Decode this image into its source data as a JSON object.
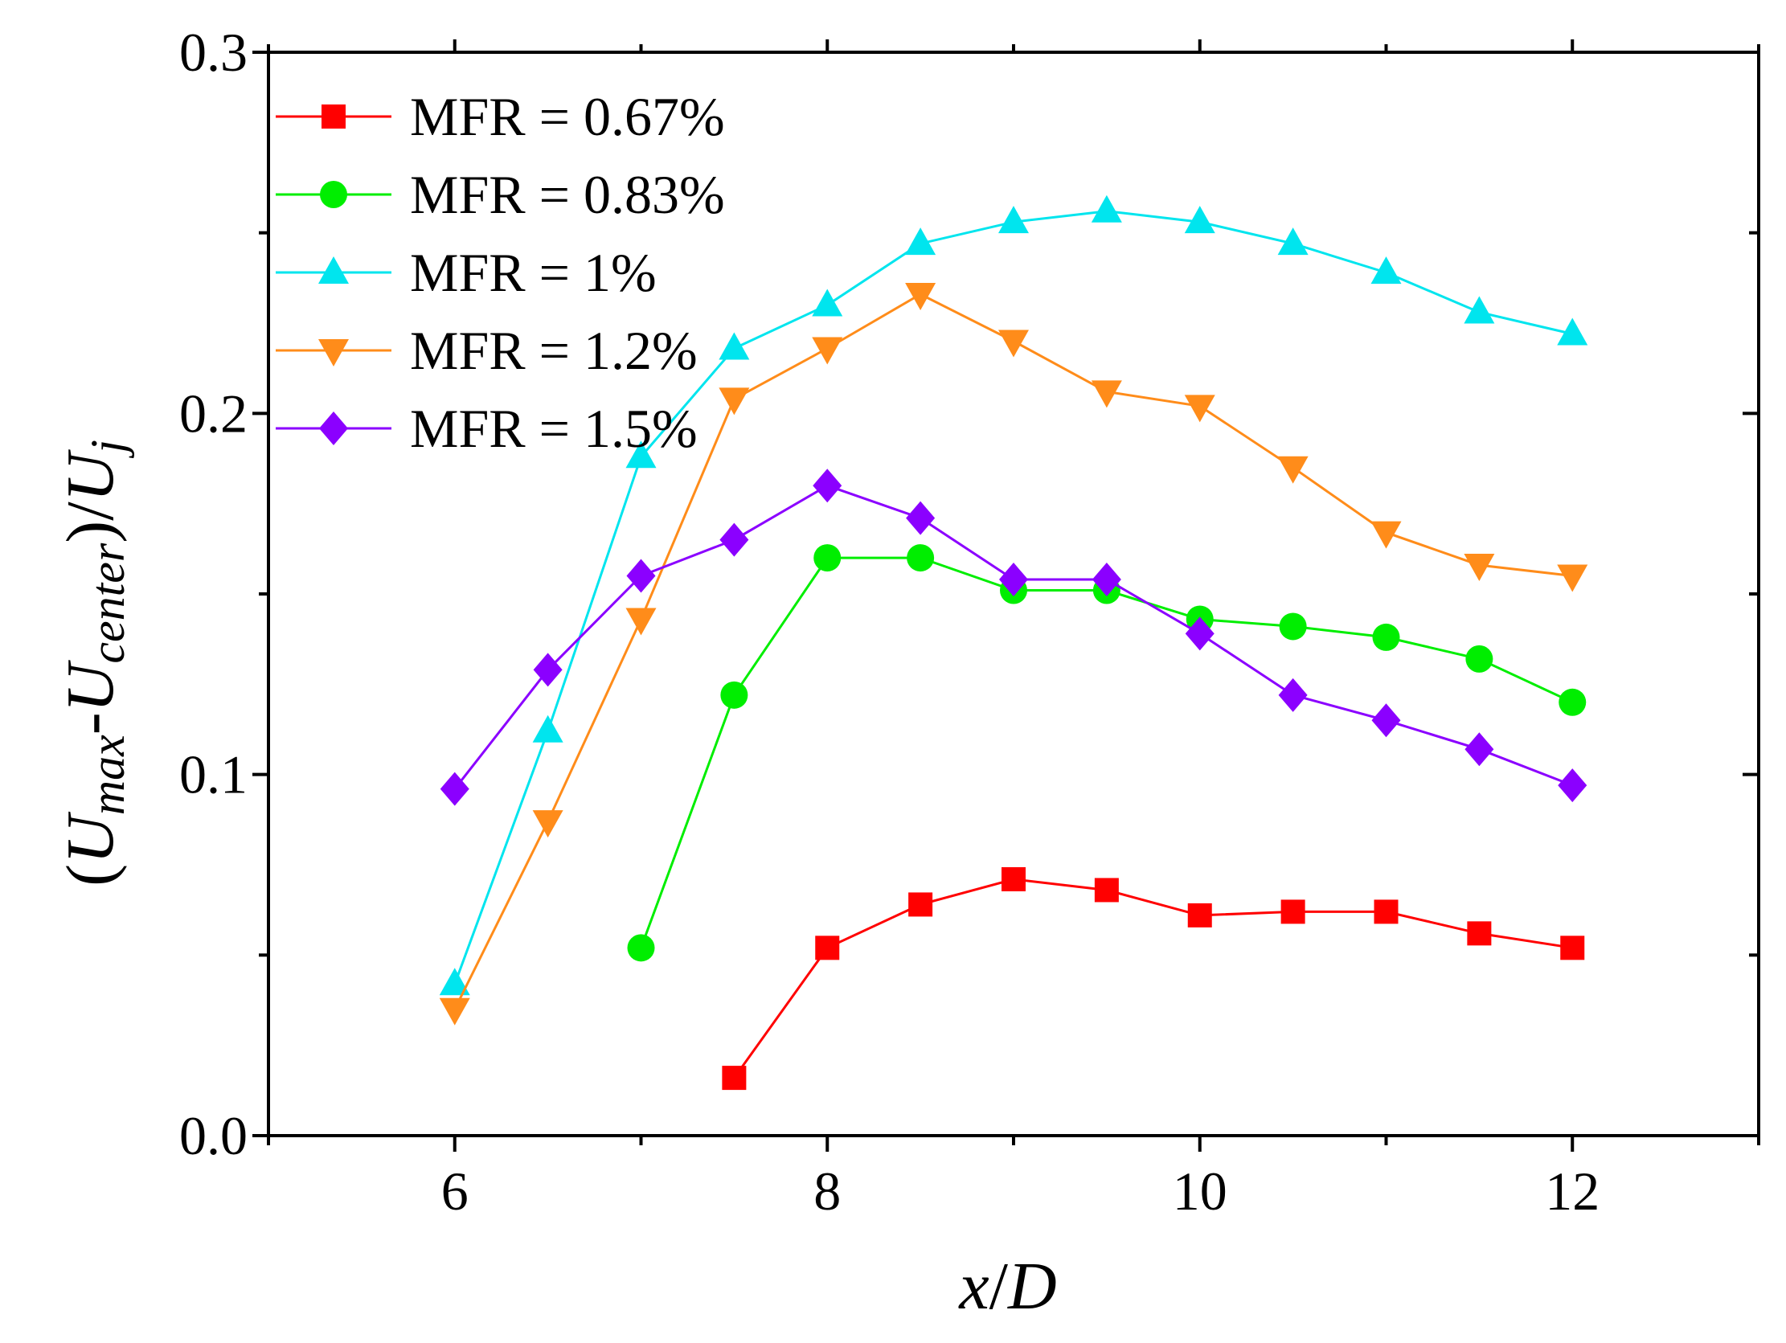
{
  "chart_data": {
    "type": "line",
    "title": "",
    "xlabel": "x/D",
    "xlabel_parts": {
      "x": "x",
      "slash": "/",
      "d": "D"
    },
    "ylabel": "(Umax-Ucenter)/Uj",
    "ylabel_parts": {
      "open": "(",
      "u1": "U",
      "sub1": "max",
      "dash": "-",
      "u2": "U",
      "sub2": "center",
      "close_slash": ")/",
      "u3": "U",
      "sub3": "j"
    },
    "xlim": [
      5,
      13
    ],
    "ylim": [
      0.0,
      0.3
    ],
    "xticks": [
      6,
      8,
      10,
      12
    ],
    "xtick_labels": [
      "6",
      "8",
      "10",
      "12"
    ],
    "xminor": [
      5,
      7,
      9,
      11,
      13
    ],
    "yticks": [
      0.0,
      0.1,
      0.2,
      0.3
    ],
    "ytick_labels": [
      "0.0",
      "0.1",
      "0.2",
      "0.3"
    ],
    "yminor": [
      0.05,
      0.15,
      0.25
    ],
    "grid": false,
    "legend_position": "top-left",
    "series": [
      {
        "name": "MFR = 0.67%",
        "color": "#ff0000",
        "marker": "square",
        "x": [
          7.5,
          8,
          8.5,
          9,
          9.5,
          10,
          10.5,
          11,
          11.5,
          12
        ],
        "y": [
          0.016,
          0.052,
          0.064,
          0.071,
          0.068,
          0.061,
          0.062,
          0.062,
          0.056,
          0.052
        ]
      },
      {
        "name": "MFR = 0.83%",
        "color": "#00ee00",
        "marker": "circle",
        "x": [
          7,
          7.5,
          8,
          8.5,
          9,
          9.5,
          10,
          10.5,
          11,
          11.5,
          12
        ],
        "y": [
          0.052,
          0.122,
          0.16,
          0.16,
          0.151,
          0.151,
          0.143,
          0.141,
          0.138,
          0.132,
          0.12
        ]
      },
      {
        "name": "MFR = 1%",
        "color": "#00e5ee",
        "marker": "triangle-up",
        "x": [
          6,
          6.5,
          7,
          7.5,
          8,
          8.5,
          9,
          9.5,
          10,
          10.5,
          11,
          11.5,
          12
        ],
        "y": [
          0.042,
          0.112,
          0.188,
          0.218,
          0.23,
          0.247,
          0.253,
          0.256,
          0.253,
          0.247,
          0.239,
          0.228,
          0.222
        ]
      },
      {
        "name": "MFR = 1.2%",
        "color": "#ff8c1a",
        "marker": "triangle-down",
        "x": [
          6,
          6.5,
          7,
          7.5,
          8,
          8.5,
          9,
          9.5,
          10,
          10.5,
          11,
          11.5,
          12
        ],
        "y": [
          0.035,
          0.087,
          0.143,
          0.204,
          0.218,
          0.233,
          0.22,
          0.206,
          0.202,
          0.185,
          0.167,
          0.158,
          0.155
        ]
      },
      {
        "name": "MFR = 1.5%",
        "color": "#8b00ff",
        "marker": "diamond",
        "x": [
          6,
          6.5,
          7,
          7.5,
          8,
          8.5,
          9,
          9.5,
          10,
          10.5,
          11,
          11.5,
          12
        ],
        "y": [
          0.096,
          0.129,
          0.155,
          0.165,
          0.18,
          0.171,
          0.154,
          0.154,
          0.139,
          0.122,
          0.115,
          0.107,
          0.097
        ]
      }
    ]
  }
}
